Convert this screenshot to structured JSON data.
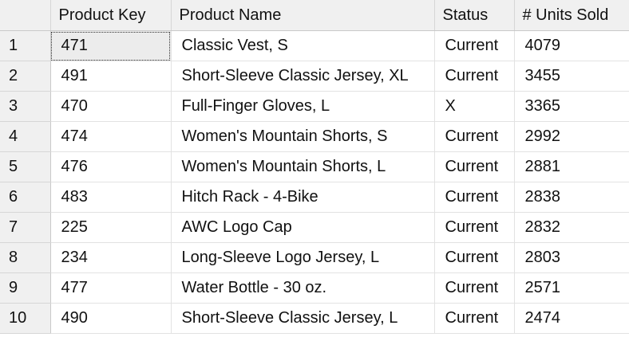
{
  "grid": {
    "columns": [
      "Product Key",
      "Product Name",
      "Status",
      "# Units Sold"
    ],
    "rows": [
      {
        "index": "1",
        "product_key": "471",
        "product_name": "Classic Vest, S",
        "status": "Current",
        "units_sold": "4079"
      },
      {
        "index": "2",
        "product_key": "491",
        "product_name": "Short-Sleeve Classic Jersey, XL",
        "status": "Current",
        "units_sold": "3455"
      },
      {
        "index": "3",
        "product_key": "470",
        "product_name": "Full-Finger Gloves, L",
        "status": "X",
        "units_sold": "3365"
      },
      {
        "index": "4",
        "product_key": "474",
        "product_name": "Women's Mountain Shorts, S",
        "status": "Current",
        "units_sold": "2992"
      },
      {
        "index": "5",
        "product_key": "476",
        "product_name": "Women's Mountain Shorts, L",
        "status": "Current",
        "units_sold": "2881"
      },
      {
        "index": "6",
        "product_key": "483",
        "product_name": "Hitch Rack - 4-Bike",
        "status": "Current",
        "units_sold": "2838"
      },
      {
        "index": "7",
        "product_key": "225",
        "product_name": "AWC Logo Cap",
        "status": "Current",
        "units_sold": "2832"
      },
      {
        "index": "8",
        "product_key": "234",
        "product_name": "Long-Sleeve Logo Jersey, L",
        "status": "Current",
        "units_sold": "2803"
      },
      {
        "index": "9",
        "product_key": "477",
        "product_name": "Water Bottle - 30 oz.",
        "status": "Current",
        "units_sold": "2571"
      },
      {
        "index": "10",
        "product_key": "490",
        "product_name": "Short-Sleeve Classic Jersey, L",
        "status": "Current",
        "units_sold": "2474"
      }
    ],
    "selected_cell": {
      "row": 0,
      "column": "product_key"
    },
    "colors": {
      "header_background": "#f0f0f0",
      "selected_cell_background": "#ececec",
      "gridline": "#e2e2e2"
    }
  }
}
